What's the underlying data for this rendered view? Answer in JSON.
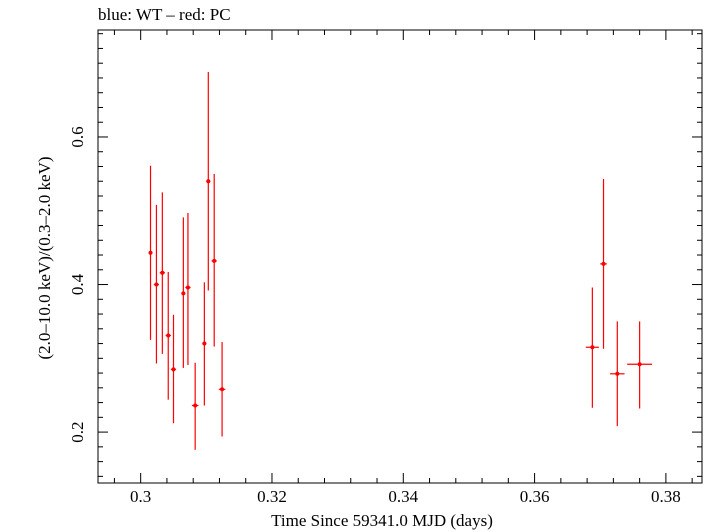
{
  "title": "blue: WT – red: PC",
  "chart_data": {
    "type": "scatter",
    "title": "blue: WT – red: PC",
    "xlabel": "Time Since 59341.0 MJD (days)",
    "ylabel": "(2.0–10.0 keV)/(0.3–2.0 keV)",
    "xlim": [
      0.2935,
      0.3855
    ],
    "ylim": [
      0.131,
      0.745
    ],
    "xticks": [
      "0.3",
      "0.32",
      "0.34",
      "0.36",
      "0.38"
    ],
    "xtick_values": [
      0.3,
      0.32,
      0.34,
      0.36,
      0.38
    ],
    "yticks": [
      "0.2",
      "0.4",
      "0.6"
    ],
    "ytick_values": [
      0.2,
      0.4,
      0.6
    ],
    "series": [
      {
        "name": "PC",
        "color": "#ff0000",
        "points": [
          {
            "x": 0.3015,
            "xerr": 0.0003,
            "y": 0.443,
            "ylo": 0.325,
            "yhi": 0.561
          },
          {
            "x": 0.3024,
            "xerr": 0.0004,
            "y": 0.4,
            "ylo": 0.293,
            "yhi": 0.508
          },
          {
            "x": 0.3033,
            "xerr": 0.0004,
            "y": 0.416,
            "ylo": 0.306,
            "yhi": 0.525
          },
          {
            "x": 0.3042,
            "xerr": 0.0004,
            "y": 0.331,
            "ylo": 0.244,
            "yhi": 0.417
          },
          {
            "x": 0.305,
            "xerr": 0.0004,
            "y": 0.285,
            "ylo": 0.212,
            "yhi": 0.359
          },
          {
            "x": 0.3065,
            "xerr": 0.0003,
            "y": 0.388,
            "ylo": 0.287,
            "yhi": 0.491
          },
          {
            "x": 0.3072,
            "xerr": 0.0004,
            "y": 0.396,
            "ylo": 0.291,
            "yhi": 0.497
          },
          {
            "x": 0.3083,
            "xerr": 0.0005,
            "y": 0.236,
            "ylo": 0.176,
            "yhi": 0.294
          },
          {
            "x": 0.3097,
            "xerr": 0.0003,
            "y": 0.32,
            "ylo": 0.236,
            "yhi": 0.403
          },
          {
            "x": 0.3103,
            "xerr": 0.0003,
            "y": 0.54,
            "ylo": 0.392,
            "yhi": 0.688
          },
          {
            "x": 0.3112,
            "xerr": 0.0004,
            "y": 0.432,
            "ylo": 0.316,
            "yhi": 0.55
          },
          {
            "x": 0.3124,
            "xerr": 0.0005,
            "y": 0.258,
            "ylo": 0.194,
            "yhi": 0.322
          },
          {
            "x": 0.3688,
            "xerr": 0.001,
            "y": 0.315,
            "ylo": 0.233,
            "yhi": 0.396
          },
          {
            "x": 0.3705,
            "xerr": 0.0005,
            "y": 0.428,
            "ylo": 0.313,
            "yhi": 0.543
          },
          {
            "x": 0.3726,
            "xerr": 0.0011,
            "y": 0.279,
            "ylo": 0.208,
            "yhi": 0.35
          },
          {
            "x": 0.376,
            "xerr": 0.0019,
            "y": 0.292,
            "ylo": 0.232,
            "yhi": 0.35
          }
        ]
      }
    ],
    "grid": false
  }
}
